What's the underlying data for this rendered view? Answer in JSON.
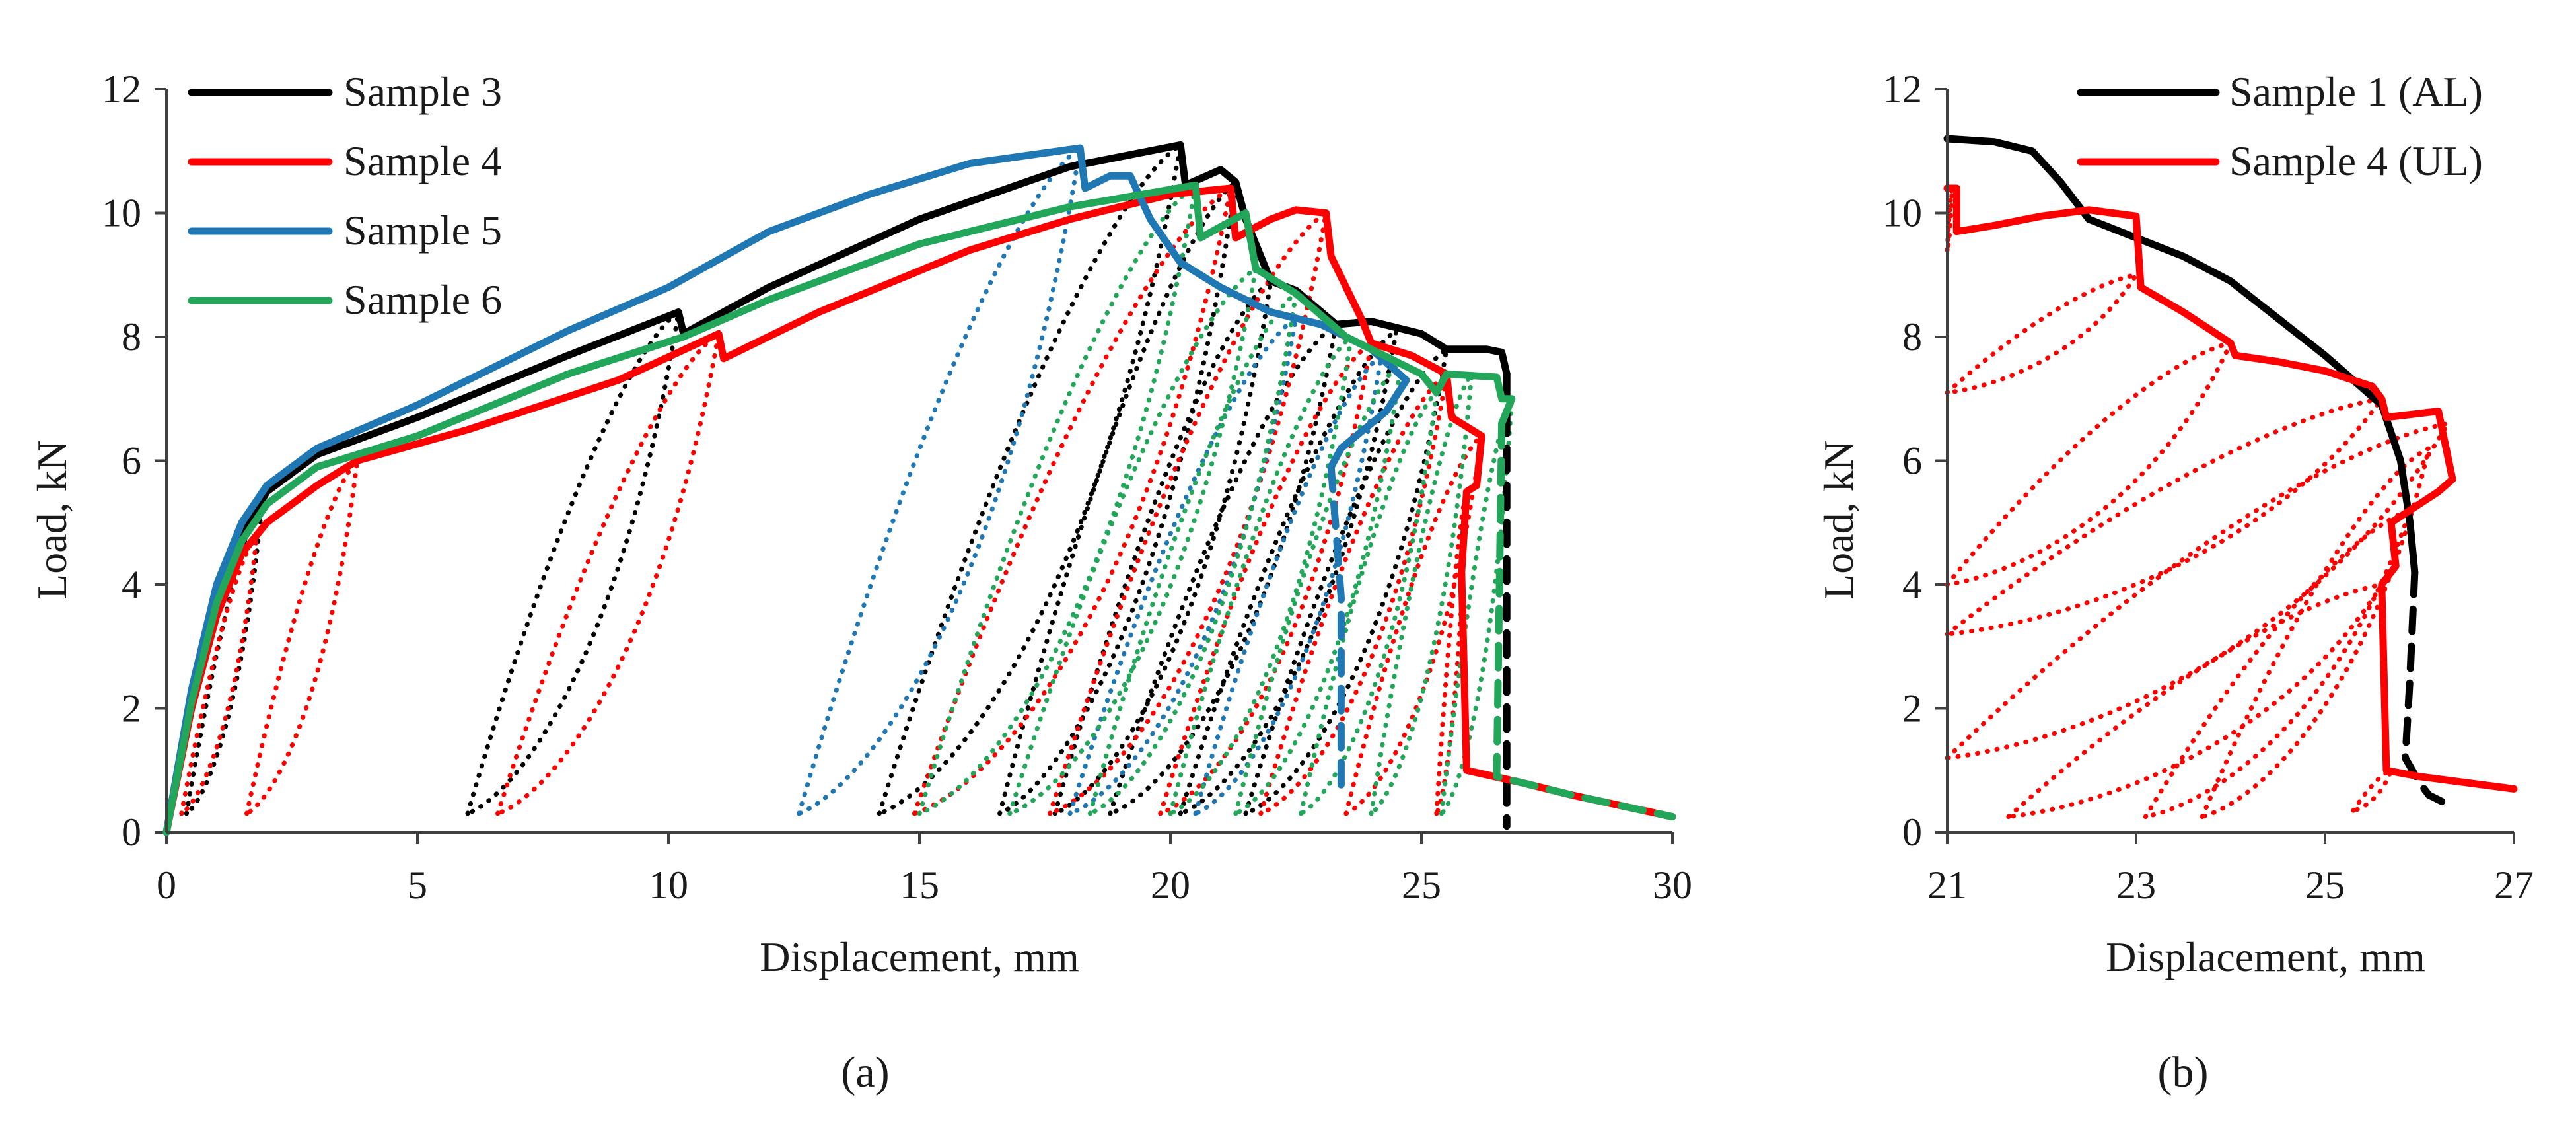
{
  "colors": {
    "sample3": "#000000",
    "sample4": "#ff0000",
    "sample5": "#1f77b4",
    "sample6": "#21a65a"
  },
  "chart_data": [
    {
      "panel": "a",
      "caption": "(a)",
      "type": "line",
      "xlabel": "Displacement, mm",
      "ylabel": "Load, kN",
      "xlim": [
        0,
        30
      ],
      "ylim": [
        0,
        12
      ],
      "xticks": [
        0,
        5,
        10,
        15,
        20,
        25,
        30
      ],
      "yticks": [
        0,
        2,
        4,
        6,
        8,
        10,
        12
      ],
      "legend_position": "top-left",
      "series": [
        {
          "name": "Sample 3",
          "color": "#000000",
          "style": "solid",
          "points": [
            [
              0,
              0
            ],
            [
              0.5,
              2.2
            ],
            [
              1,
              3.8
            ],
            [
              1.5,
              4.8
            ],
            [
              2,
              5.5
            ],
            [
              3,
              6.1
            ],
            [
              5,
              6.7
            ],
            [
              8,
              7.7
            ],
            [
              10.2,
              8.4
            ],
            [
              10.3,
              8.05
            ],
            [
              12,
              8.8
            ],
            [
              15,
              9.9
            ],
            [
              18,
              10.75
            ],
            [
              20.2,
              11.1
            ],
            [
              20.3,
              10.45
            ],
            [
              21,
              10.7
            ],
            [
              21.3,
              10.5
            ],
            [
              21.5,
              9.9
            ],
            [
              22,
              8.9
            ],
            [
              22.5,
              8.75
            ],
            [
              23.3,
              8.2
            ],
            [
              24,
              8.25
            ],
            [
              25,
              8.05
            ],
            [
              25.5,
              7.8
            ],
            [
              26.3,
              7.8
            ],
            [
              26.6,
              7.75
            ],
            [
              26.7,
              7.4
            ]
          ]
        },
        {
          "name": "Sample 3 (unload/reload)",
          "color": "#000000",
          "style": "dotted",
          "points": []
        },
        {
          "name": "Sample 3 (failure)",
          "color": "#000000",
          "style": "dashed",
          "points": [
            [
              26.7,
              7.4
            ],
            [
              26.7,
              0.1
            ]
          ]
        },
        {
          "name": "Sample 4",
          "color": "#ff0000",
          "style": "solid",
          "points": [
            [
              0,
              0
            ],
            [
              0.5,
              2.0
            ],
            [
              1,
              3.5
            ],
            [
              1.5,
              4.5
            ],
            [
              2,
              5.0
            ],
            [
              3,
              5.6
            ],
            [
              3.8,
              6.0
            ],
            [
              6,
              6.5
            ],
            [
              9,
              7.3
            ],
            [
              11,
              8.05
            ],
            [
              11.1,
              7.65
            ],
            [
              13,
              8.4
            ],
            [
              16,
              9.4
            ],
            [
              18,
              9.9
            ],
            [
              20,
              10.3
            ],
            [
              21.2,
              10.4
            ],
            [
              21.3,
              9.6
            ],
            [
              22,
              9.9
            ],
            [
              22.5,
              10.05
            ],
            [
              23.1,
              10.0
            ],
            [
              23.2,
              9.3
            ],
            [
              23.8,
              8.3
            ],
            [
              24,
              7.9
            ],
            [
              24.8,
              7.7
            ],
            [
              25.5,
              7.4
            ],
            [
              25.6,
              6.7
            ],
            [
              26.2,
              6.4
            ],
            [
              26.1,
              5.6
            ],
            [
              25.9,
              5.5
            ],
            [
              25.8,
              4.2
            ],
            [
              25.9,
              1.0
            ],
            [
              27,
              0.8
            ],
            [
              28,
              0.6
            ],
            [
              30,
              0.25
            ]
          ]
        },
        {
          "name": "Sample 4 (unload/reload)",
          "color": "#ff0000",
          "style": "dotted",
          "points": []
        },
        {
          "name": "Sample 5",
          "color": "#1f77b4",
          "style": "solid",
          "points": [
            [
              0,
              0
            ],
            [
              0.5,
              2.3
            ],
            [
              1,
              4.0
            ],
            [
              1.5,
              5.0
            ],
            [
              2,
              5.6
            ],
            [
              3,
              6.2
            ],
            [
              5,
              6.9
            ],
            [
              8,
              8.1
            ],
            [
              10,
              8.8
            ],
            [
              12,
              9.7
            ],
            [
              14,
              10.3
            ],
            [
              16,
              10.8
            ],
            [
              18.2,
              11.05
            ],
            [
              18.3,
              10.4
            ],
            [
              18.8,
              10.6
            ],
            [
              19.2,
              10.6
            ],
            [
              19.6,
              9.9
            ],
            [
              20.2,
              9.2
            ],
            [
              21,
              8.8
            ],
            [
              22,
              8.4
            ],
            [
              23,
              8.2
            ],
            [
              24,
              7.8
            ],
            [
              24.7,
              7.3
            ],
            [
              24.3,
              6.8
            ],
            [
              23.4,
              6.2
            ],
            [
              23.2,
              5.9
            ]
          ]
        },
        {
          "name": "Sample 5 (failure)",
          "color": "#1f77b4",
          "style": "dashed",
          "points": [
            [
              23.2,
              5.9
            ],
            [
              23.4,
              3.8
            ],
            [
              23.4,
              0.7
            ]
          ]
        },
        {
          "name": "Sample 6",
          "color": "#21a65a",
          "style": "solid",
          "points": [
            [
              0,
              0
            ],
            [
              0.5,
              2.1
            ],
            [
              1,
              3.7
            ],
            [
              1.5,
              4.7
            ],
            [
              2,
              5.3
            ],
            [
              3,
              5.9
            ],
            [
              5,
              6.4
            ],
            [
              8,
              7.4
            ],
            [
              10.3,
              8.0
            ],
            [
              12,
              8.6
            ],
            [
              15,
              9.5
            ],
            [
              18,
              10.1
            ],
            [
              20.5,
              10.45
            ],
            [
              20.6,
              9.6
            ],
            [
              21.5,
              10.0
            ],
            [
              21.7,
              9.1
            ],
            [
              22.5,
              8.7
            ],
            [
              23.5,
              8.0
            ],
            [
              24.5,
              7.6
            ],
            [
              25,
              7.4
            ],
            [
              25.3,
              7.1
            ],
            [
              25.5,
              7.4
            ],
            [
              26.5,
              7.35
            ],
            [
              26.6,
              7.0
            ],
            [
              26.8,
              7.0
            ],
            [
              26.6,
              6.6
            ]
          ]
        },
        {
          "name": "Sample 6 (failure)",
          "color": "#21a65a",
          "style": "dashed",
          "points": [
            [
              26.6,
              6.6
            ],
            [
              26.5,
              0.9
            ],
            [
              27,
              0.8
            ],
            [
              28,
              0.6
            ],
            [
              30,
              0.25
            ]
          ]
        }
      ],
      "loops": [
        {
          "color": "#000000",
          "start": 0.4,
          "peak": [
            1.9,
            5.3
          ]
        },
        {
          "color": "#000000",
          "start": 6.0,
          "peak": [
            10.2,
            8.4
          ]
        },
        {
          "color": "#000000",
          "start": 14.2,
          "peak": [
            20.2,
            11.1
          ]
        },
        {
          "color": "#000000",
          "start": 16.6,
          "peak": [
            21.3,
            10.5
          ]
        },
        {
          "color": "#000000",
          "start": 17.7,
          "peak": [
            22.0,
            8.9
          ]
        },
        {
          "color": "#000000",
          "start": 18.8,
          "peak": [
            23.3,
            8.2
          ]
        },
        {
          "color": "#000000",
          "start": 20.2,
          "peak": [
            24.5,
            8.1
          ]
        },
        {
          "color": "#000000",
          "start": 21.5,
          "peak": [
            25.5,
            7.8
          ]
        },
        {
          "color": "#ff0000",
          "start": 0.3,
          "peak": [
            1.8,
            4.8
          ]
        },
        {
          "color": "#ff0000",
          "start": 1.6,
          "peak": [
            3.8,
            6.0
          ]
        },
        {
          "color": "#ff0000",
          "start": 6.6,
          "peak": [
            11.0,
            8.05
          ]
        },
        {
          "color": "#ff0000",
          "start": 14.9,
          "peak": [
            21.2,
            10.4
          ]
        },
        {
          "color": "#ff0000",
          "start": 17.6,
          "peak": [
            23.1,
            10.0
          ]
        },
        {
          "color": "#ff0000",
          "start": 19.8,
          "peak": [
            24.0,
            7.9
          ]
        },
        {
          "color": "#ff0000",
          "start": 21.8,
          "peak": [
            25.5,
            7.4
          ]
        },
        {
          "color": "#ff0000",
          "start": 23.5,
          "peak": [
            26.2,
            6.4
          ]
        },
        {
          "color": "#ff0000",
          "start": 25.3,
          "peak": [
            25.9,
            5.5
          ]
        },
        {
          "color": "#1f77b4",
          "start": 12.6,
          "peak": [
            18.2,
            11.05
          ]
        },
        {
          "color": "#1f77b4",
          "start": 18.0,
          "peak": [
            22.5,
            8.3
          ]
        },
        {
          "color": "#1f77b4",
          "start": 20.5,
          "peak": [
            24.2,
            7.7
          ]
        },
        {
          "color": "#21a65a",
          "start": 15.0,
          "peak": [
            20.5,
            10.45
          ]
        },
        {
          "color": "#21a65a",
          "start": 16.8,
          "peak": [
            21.7,
            9.1
          ]
        },
        {
          "color": "#21a65a",
          "start": 18.4,
          "peak": [
            22.5,
            8.7
          ]
        },
        {
          "color": "#21a65a",
          "start": 20.0,
          "peak": [
            23.6,
            8.0
          ]
        },
        {
          "color": "#21a65a",
          "start": 21.3,
          "peak": [
            24.6,
            7.6
          ]
        },
        {
          "color": "#21a65a",
          "start": 22.6,
          "peak": [
            25.3,
            7.1
          ]
        },
        {
          "color": "#21a65a",
          "start": 24.0,
          "peak": [
            26.0,
            7.4
          ]
        },
        {
          "color": "#21a65a",
          "start": 25.4,
          "peak": [
            26.8,
            7.0
          ]
        }
      ],
      "legend": [
        "Sample 3",
        "Sample 4",
        "Sample 5",
        "Sample 6"
      ]
    },
    {
      "panel": "b",
      "caption": "(b)",
      "type": "line",
      "xlabel": "Displacement, mm",
      "ylabel": "Load, kN",
      "xlim": [
        21,
        27
      ],
      "ylim": [
        0,
        12
      ],
      "xticks": [
        21,
        23,
        25,
        27
      ],
      "yticks": [
        0,
        2,
        4,
        6,
        8,
        10,
        12
      ],
      "legend_position": "top-right",
      "series": [
        {
          "name": "Sample 1 (AL)",
          "color": "#000000",
          "style": "solid",
          "points": [
            [
              21,
              11.2
            ],
            [
              21.5,
              11.15
            ],
            [
              21.9,
              11.0
            ],
            [
              22.2,
              10.5
            ],
            [
              22.5,
              9.9
            ],
            [
              23,
              9.6
            ],
            [
              23.5,
              9.3
            ],
            [
              24,
              8.9
            ],
            [
              24.5,
              8.3
            ],
            [
              25,
              7.7
            ],
            [
              25.3,
              7.3
            ],
            [
              25.6,
              6.9
            ],
            [
              25.8,
              6.0
            ],
            [
              25.9,
              5.0
            ],
            [
              25.95,
              4.2
            ]
          ]
        },
        {
          "name": "Sample 1 (AL) (failure)",
          "color": "#000000",
          "style": "dashed",
          "points": [
            [
              25.95,
              4.2
            ],
            [
              25.9,
              2.5
            ],
            [
              25.85,
              1.2
            ],
            [
              26,
              0.8
            ],
            [
              26.1,
              0.6
            ],
            [
              26.3,
              0.45
            ]
          ]
        },
        {
          "name": "Sample 4 (UL)",
          "color": "#ff0000",
          "style": "solid",
          "points": [
            [
              21,
              10.4
            ],
            [
              21.1,
              10.4
            ],
            [
              21.1,
              9.7
            ],
            [
              21.5,
              9.8
            ],
            [
              22,
              9.95
            ],
            [
              22.5,
              10.05
            ],
            [
              23,
              9.95
            ],
            [
              23.05,
              8.8
            ],
            [
              23.5,
              8.4
            ],
            [
              24,
              7.9
            ],
            [
              24.05,
              7.7
            ],
            [
              24.5,
              7.6
            ],
            [
              25,
              7.45
            ],
            [
              25.5,
              7.2
            ],
            [
              25.6,
              7.0
            ],
            [
              25.65,
              6.7
            ],
            [
              26.2,
              6.8
            ],
            [
              26.35,
              5.7
            ],
            [
              26.2,
              5.5
            ],
            [
              25.7,
              5.0
            ],
            [
              25.75,
              4.3
            ],
            [
              25.6,
              4.0
            ],
            [
              25.65,
              1.0
            ],
            [
              26,
              0.9
            ],
            [
              27,
              0.7
            ]
          ]
        },
        {
          "name": "Sample 4 (UL) (unload/reload)",
          "color": "#ff0000",
          "style": "dotted",
          "points": []
        }
      ],
      "loops": [
        {
          "color": "#ff0000",
          "start": 21.0,
          "peak": [
            21.05,
            10.4
          ],
          "startY": 9.4
        },
        {
          "color": "#ff0000",
          "start": 21.0,
          "peak": [
            23.0,
            9.0
          ],
          "startY": 7.1
        },
        {
          "color": "#ff0000",
          "start": 21.0,
          "peak": [
            24.0,
            7.9
          ],
          "startY": 4.0
        },
        {
          "color": "#ff0000",
          "start": 21.0,
          "peak": [
            25.6,
            7.0
          ],
          "startY": 3.2
        },
        {
          "color": "#ff0000",
          "start": 21.0,
          "peak": [
            26.3,
            6.6
          ],
          "startY": 1.2
        },
        {
          "color": "#ff0000",
          "start": 21.65,
          "peak": [
            25.6,
            4.0
          ],
          "startY": 0.25
        },
        {
          "color": "#ff0000",
          "start": 23.1,
          "peak": [
            25.9,
            5.2
          ],
          "startY": 0.25
        },
        {
          "color": "#ff0000",
          "start": 23.7,
          "peak": [
            26.1,
            6.2
          ],
          "startY": 0.25
        },
        {
          "color": "#ff0000",
          "start": 25.3,
          "peak": [
            25.7,
            1.0
          ],
          "startY": 0.35
        }
      ],
      "legend": [
        "Sample 1 (AL)",
        "Sample 4 (UL)"
      ]
    }
  ]
}
